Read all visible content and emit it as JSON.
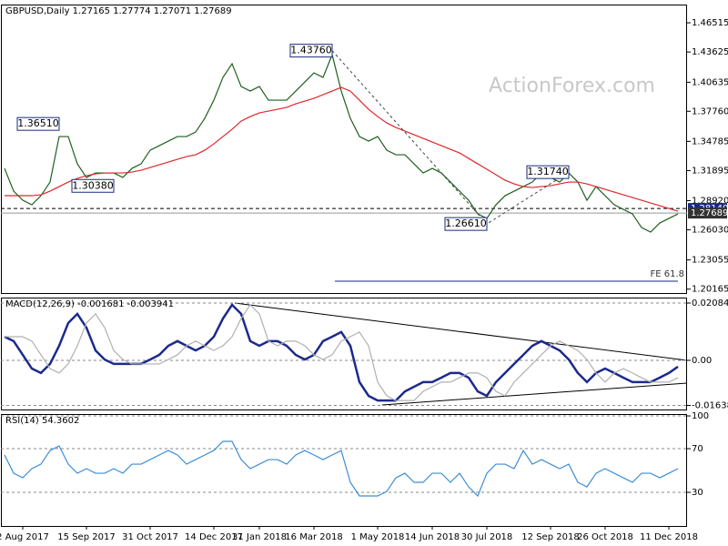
{
  "watermark": "ActionForex.com",
  "chart_data": [
    {
      "type": "line",
      "title": "GBPUSD,Daily  1.27165 1.27774 1.27071 1.27689",
      "ylim": [
        1.1978,
        1.4832
      ],
      "yticks": [
        1.46515,
        {
          "value": 1.43625,
          "label": "1.43625"
        },
        {
          "value": 1.40635,
          "label": "1.40635"
        },
        {
          "value": 1.3776,
          "label": "1.37760"
        },
        1.34785,
        1.31895,
        {
          "value": 1.2892,
          "label": "1.28920"
        },
        {
          "value": 1.2603,
          "label": "1.26030"
        },
        1.23055,
        1.20165
      ],
      "grid": false,
      "series": [
        {
          "color": "#1f5f1f",
          "values": [
            1.3211,
            1.2986,
            1.2896,
            1.2851,
            1.2941,
            1.3076,
            1.3526,
            1.3526,
            1.3256,
            1.3121,
            1.3166,
            1.3166,
            1.3166,
            1.3121,
            1.3211,
            1.3256,
            1.3391,
            1.3436,
            1.3481,
            1.3526,
            1.3526,
            1.3571,
            1.3706,
            1.3886,
            1.4111,
            1.4246,
            1.4021,
            1.3976,
            1.4021,
            1.3886,
            1.3886,
            1.3886,
            1.3976,
            1.4066,
            1.4156,
            1.4111,
            1.4336,
            1.3976,
            1.3706,
            1.3526,
            1.3481,
            1.3526,
            1.3391,
            1.3346,
            1.3346,
            1.3256,
            1.3166,
            1.3211,
            1.3166,
            1.3076,
            1.2986,
            1.2896,
            1.2761,
            1.2716,
            1.2851,
            1.2941,
            1.2986,
            1.3031,
            1.3076,
            1.3166,
            1.3121,
            1.3076,
            1.3166,
            1.3076,
            1.2896,
            1.3031,
            1.2941,
            1.2851,
            1.2806,
            1.2761,
            1.2626,
            1.2581,
            1.2671,
            1.2716,
            1.2761
          ]
        },
        {
          "color": "#e0262a",
          "values": [
            1.2941,
            1.2941,
            1.2941,
            1.2941,
            1.295,
            1.2986,
            1.3031,
            1.3076,
            1.3112,
            1.3139,
            1.3157,
            1.3166,
            1.3166,
            1.3166,
            1.3175,
            1.3193,
            1.322,
            1.3247,
            1.3274,
            1.3301,
            1.3328,
            1.3346,
            1.3391,
            1.3454,
            1.3526,
            1.3598,
            1.3679,
            1.3724,
            1.376,
            1.3778,
            1.3796,
            1.3814,
            1.385,
            1.3877,
            1.3904,
            1.394,
            1.3976,
            1.4012,
            1.3976,
            1.3886,
            1.3796,
            1.3724,
            1.3661,
            1.3616,
            1.358,
            1.3544,
            1.3508,
            1.3472,
            1.3436,
            1.34,
            1.3364,
            1.331,
            1.3256,
            1.3202,
            1.3148,
            1.3094,
            1.3058,
            1.3031,
            1.3022,
            1.3031,
            1.304,
            1.3058,
            1.3076,
            1.3076,
            1.3058,
            1.3031,
            1.3004,
            1.2977,
            1.295,
            1.2923,
            1.2896,
            1.2869,
            1.2842,
            1.2815,
            1.2788
          ]
        }
      ],
      "annotations": [
        {
          "index": 36,
          "value": 1.4376,
          "label": "1.43760"
        },
        {
          "index": 6,
          "value": 1.3651,
          "label": "1.36510"
        },
        {
          "index": 12,
          "value": 1.3038,
          "label": "1.30380"
        },
        {
          "index": 53,
          "value": 1.2661,
          "label": "1.26610"
        },
        {
          "index": 62,
          "value": 1.3174,
          "label": "1.31740"
        }
      ],
      "levels": [
        {
          "value": 1.2814,
          "label": "1.28140",
          "color": "#1a2a80"
        },
        {
          "value": 1.27689,
          "label": "1.27689",
          "color": "#333333"
        }
      ],
      "fe_level": {
        "value": 1.2095,
        "label": "FE 61.8"
      }
    },
    {
      "type": "line",
      "title": "MACD(12,26,9) -0.001681 -0.003941",
      "ylim": [
        -0.01787,
        0.02283
      ],
      "yticks": [
        0.020848,
        {
          "value": 0,
          "label": "0.00"
        },
        -0.016389
      ],
      "grid": true,
      "series": [
        {
          "color": "#1c2a8c",
          "values": [
            0.0086,
            0.007,
            0.002,
            -0.003,
            -0.0046,
            -0.0013,
            0.0053,
            0.0136,
            0.0169,
            0.0119,
            0.0036,
            0.0003,
            -0.0013,
            -0.0013,
            -0.0013,
            -0.0013,
            0.0003,
            0.002,
            0.0053,
            0.007,
            0.0053,
            0.0036,
            0.0053,
            0.0086,
            0.0152,
            0.0202,
            0.0169,
            0.007,
            0.0053,
            0.007,
            0.007,
            0.0053,
            0.002,
            0.0003,
            0.002,
            0.007,
            0.0086,
            0.0103,
            0.0053,
            -0.0079,
            -0.0129,
            -0.0146,
            -0.0146,
            -0.0146,
            -0.0113,
            -0.0096,
            -0.0079,
            -0.0079,
            -0.0063,
            -0.0046,
            -0.0046,
            -0.0063,
            -0.0113,
            -0.0129,
            -0.0079,
            -0.0046,
            -0.0013,
            0.002,
            0.0053,
            0.007,
            0.0053,
            0.0036,
            0.0003,
            -0.0046,
            -0.0079,
            -0.0046,
            -0.003,
            -0.0046,
            -0.0063,
            -0.0079,
            -0.0079,
            -0.0079,
            -0.0063,
            -0.0046,
            -0.0023
          ]
        },
        {
          "color": "#b0b0b0",
          "values": [
            0.0086,
            0.0086,
            0.0086,
            0.007,
            0.002,
            -0.003,
            -0.0046,
            -0.0013,
            0.0053,
            0.0136,
            0.0169,
            0.0119,
            0.0036,
            0.0003,
            -0.0013,
            -0.0013,
            -0.0013,
            -0.0013,
            0.0003,
            0.002,
            0.0053,
            0.007,
            0.0053,
            0.0036,
            0.0053,
            0.0086,
            0.0152,
            0.0202,
            0.0169,
            0.007,
            0.0053,
            0.007,
            0.007,
            0.0053,
            0.002,
            0.0003,
            0.002,
            0.007,
            0.0086,
            0.0103,
            0.0053,
            -0.0079,
            -0.0129,
            -0.0146,
            -0.0146,
            -0.0146,
            -0.0113,
            -0.0096,
            -0.0079,
            -0.0079,
            -0.0063,
            -0.0046,
            -0.0046,
            -0.0063,
            -0.0113,
            -0.0129,
            -0.0079,
            -0.0046,
            -0.0013,
            0.002,
            0.0053,
            0.007,
            0.0053,
            0.0036,
            0.0003,
            -0.0046,
            -0.0079,
            -0.0046,
            -0.003,
            -0.0046,
            -0.0063,
            -0.0079,
            -0.0079,
            -0.0079,
            -0.0063
          ]
        }
      ]
    },
    {
      "type": "line",
      "title": "RSI(14) 54.3602",
      "ylim": [
        -0.8,
        101.7
      ],
      "yticks": [
        100,
        70,
        30
      ],
      "grid": true,
      "series": [
        {
          "color": "#3c8dd6",
          "values": [
            64.2,
            47.5,
            43.3,
            51.7,
            55.8,
            68.3,
            72.5,
            55.8,
            47.5,
            51.7,
            47.5,
            47.5,
            51.7,
            47.5,
            55.8,
            55.8,
            60.0,
            64.2,
            68.3,
            64.2,
            55.8,
            60.0,
            64.2,
            68.3,
            76.7,
            76.7,
            60.0,
            51.7,
            55.8,
            60.0,
            60.0,
            55.8,
            64.2,
            68.3,
            64.2,
            60.0,
            64.2,
            68.3,
            39.2,
            26.7,
            26.7,
            26.7,
            30.8,
            43.3,
            47.5,
            39.2,
            39.2,
            47.5,
            47.5,
            39.2,
            47.5,
            35.0,
            26.7,
            47.5,
            55.8,
            55.8,
            51.7,
            68.3,
            55.8,
            60.0,
            55.8,
            51.7,
            55.8,
            39.2,
            35.0,
            47.5,
            51.7,
            47.5,
            43.3,
            39.2,
            47.5,
            47.5,
            43.3,
            47.5,
            51.7
          ]
        }
      ],
      "categories": [
        null,
        null,
        "2 Aug 2017",
        null,
        null,
        null,
        null,
        null,
        null,
        "15 Sep 2017",
        null,
        null,
        null,
        null,
        null,
        null,
        "31 Oct 2017",
        null,
        null,
        null,
        null,
        null,
        null,
        "14 Dec 2017",
        null,
        null,
        null,
        null,
        "31 Jan 2018",
        null,
        null,
        null,
        null,
        null,
        "16 Mar 2018",
        null,
        null,
        null,
        null,
        null,
        null,
        "1 May 2018",
        null,
        null,
        null,
        null,
        null,
        "14 Jun 2018",
        null,
        null,
        null,
        null,
        null,
        "30 Jul 2018",
        null,
        null,
        null,
        null,
        null,
        null,
        "12 Sep 2018",
        null,
        null,
        null,
        null,
        null,
        "26 Oct 2018",
        null,
        null,
        null,
        null,
        null,
        null,
        "11 Dec 2018",
        null
      ]
    }
  ]
}
